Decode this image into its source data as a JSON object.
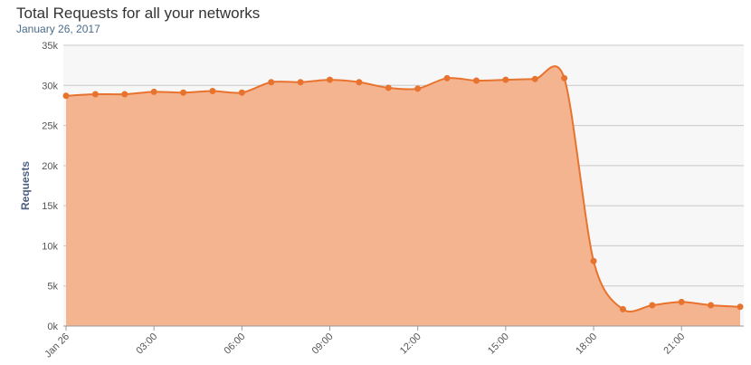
{
  "chart_data": {
    "type": "area",
    "title": "Total Requests for all your networks",
    "subtitle": "January 26, 2017",
    "y_label": "Requests",
    "categories": [
      "Jan 26",
      null,
      null,
      "03:00",
      null,
      null,
      "06:00",
      null,
      null,
      "09:00",
      null,
      null,
      "12:00",
      null,
      null,
      "15:00",
      null,
      null,
      "18:00",
      null,
      null,
      "21:00",
      null,
      null
    ],
    "series": [
      {
        "name": "Requests",
        "color": "#e8732e",
        "fill": "#f4b48f",
        "values": [
          28700,
          28900,
          28900,
          29200,
          29100,
          29300,
          29100,
          30400,
          30400,
          30700,
          30400,
          29700,
          29600,
          30900,
          30600,
          30700,
          30800,
          30900,
          8100,
          2100,
          2600,
          3000,
          2600,
          2400
        ]
      }
    ],
    "ylim": [
      0,
      35000
    ],
    "yticks": [
      {
        "value": 0,
        "label": "0k"
      },
      {
        "value": 5000,
        "label": "5k"
      },
      {
        "value": 10000,
        "label": "10k"
      },
      {
        "value": 15000,
        "label": "15k"
      },
      {
        "value": 20000,
        "label": "20k"
      },
      {
        "value": 25000,
        "label": "25k"
      },
      {
        "value": 30000,
        "label": "30k"
      },
      {
        "value": 35000,
        "label": "35k"
      }
    ],
    "grid": true
  }
}
